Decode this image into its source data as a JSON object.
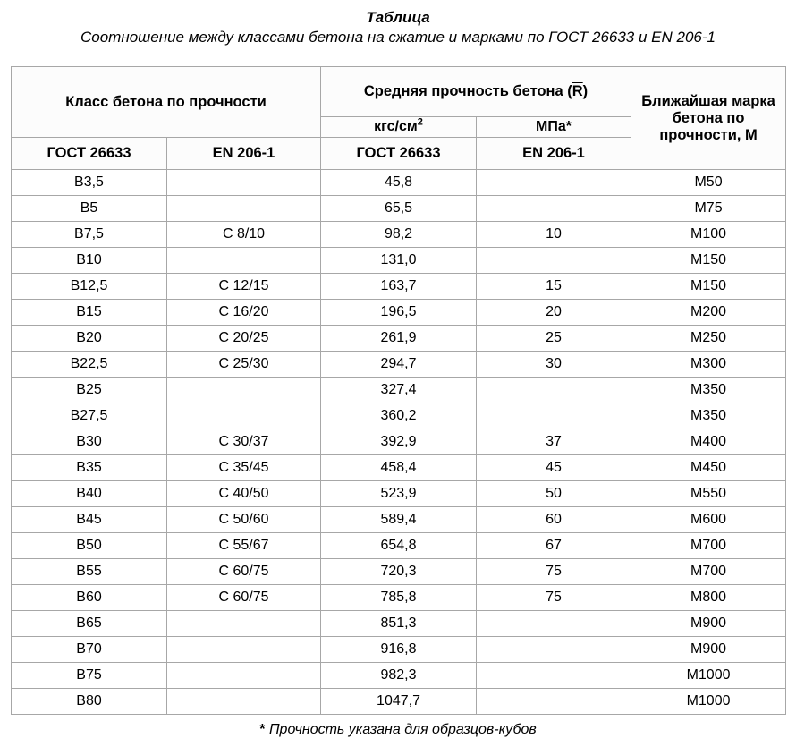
{
  "title": "Таблица",
  "subtitle": "Соотношение между классами бетона на сжатие и марками по ГОСТ 26633 и EN 206-1",
  "header": {
    "class_by_strength": "Класс бетона по прочности",
    "avg_strength_prefix": "Средняя прочность бетона (",
    "avg_strength_R": "R",
    "avg_strength_suffix": ")",
    "units_kgf": "кгс/см",
    "units_kgf_sup": "2",
    "units_mpa": "МПа",
    "units_mpa_star": "*",
    "nearest_mark": "Ближайшая марка бетона по прочности, М",
    "gost": "ГОСТ 26633",
    "en": "EN 206-1"
  },
  "columns": [
    "gost_class",
    "en_class",
    "gost_strength",
    "en_strength",
    "mark"
  ],
  "col_widths": [
    "174px",
    "172px",
    "174px",
    "173px",
    "173px"
  ],
  "rows": [
    [
      "В3,5",
      "",
      "45,8",
      "",
      "М50"
    ],
    [
      "В5",
      "",
      "65,5",
      "",
      "М75"
    ],
    [
      "В7,5",
      "C 8/10",
      "98,2",
      "10",
      "М100"
    ],
    [
      "В10",
      "",
      "131,0",
      "",
      "М150"
    ],
    [
      "В12,5",
      "C 12/15",
      "163,7",
      "15",
      "М150"
    ],
    [
      "В15",
      "C 16/20",
      "196,5",
      "20",
      "М200"
    ],
    [
      "В20",
      "C 20/25",
      "261,9",
      "25",
      "М250"
    ],
    [
      "В22,5",
      "C 25/30",
      "294,7",
      "30",
      "М300"
    ],
    [
      "В25",
      "",
      "327,4",
      "",
      "М350"
    ],
    [
      "В27,5",
      "",
      "360,2",
      "",
      "М350"
    ],
    [
      "В30",
      "C 30/37",
      "392,9",
      "37",
      "М400"
    ],
    [
      "В35",
      "C 35/45",
      "458,4",
      "45",
      "М450"
    ],
    [
      "В40",
      "C 40/50",
      "523,9",
      "50",
      "М550"
    ],
    [
      "В45",
      "C 50/60",
      "589,4",
      "60",
      "М600"
    ],
    [
      "В50",
      "C 55/67",
      "654,8",
      "67",
      "М700"
    ],
    [
      "В55",
      "C 60/75",
      "720,3",
      "75",
      "М700"
    ],
    [
      "В60",
      "C 60/75",
      "785,8",
      "75",
      "М800"
    ],
    [
      "В65",
      "",
      "851,3",
      "",
      "М900"
    ],
    [
      "В70",
      "",
      "916,8",
      "",
      "М900"
    ],
    [
      "В75",
      "",
      "982,3",
      "",
      "М1000"
    ],
    [
      "В80",
      "",
      "1047,7",
      "",
      "М1000"
    ]
  ],
  "footnote_star": "*",
  "footnote_text": " Прочность указана для образцов-кубов",
  "colors": {
    "border": "#a7a7a7",
    "text": "#000000",
    "background": "#ffffff"
  }
}
